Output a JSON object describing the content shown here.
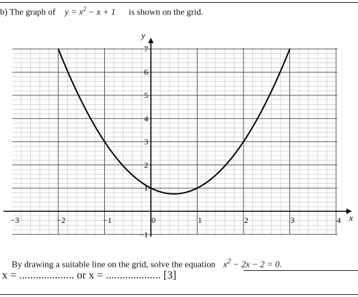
{
  "question": {
    "prefix": "b)",
    "intro": "The graph of",
    "equation_y": "y = x",
    "equation_rest": " − x + 1",
    "suffix": "is shown on the grid."
  },
  "instruction": {
    "text": "By drawing a suitable line on the grid, solve the equation",
    "equation_lhs": "x",
    "equation_rest": " − 2x − 2 = 0."
  },
  "answer": {
    "text": "x = .................... or x = ....................  [3]"
  },
  "chart_data": {
    "type": "line",
    "function": "y = x^2 - x + 1",
    "xlabel": "x",
    "ylabel": "y",
    "xlim": [
      -3,
      4
    ],
    "ylim": [
      -1,
      7
    ],
    "x_ticks": [
      -3,
      -2,
      -1,
      0,
      1,
      2,
      3,
      4
    ],
    "y_ticks": [
      -1,
      1,
      2,
      3,
      4,
      5,
      6,
      7
    ],
    "minor_step": 0.2,
    "grid": true,
    "series": [
      {
        "x": [
          -2,
          -1.5,
          -1,
          -0.5,
          0,
          0.5,
          1,
          1.5,
          2,
          2.5,
          3
        ],
        "y": [
          7,
          4.75,
          3,
          1.75,
          1,
          0.75,
          1,
          1.75,
          3,
          4.75,
          7
        ]
      }
    ]
  }
}
